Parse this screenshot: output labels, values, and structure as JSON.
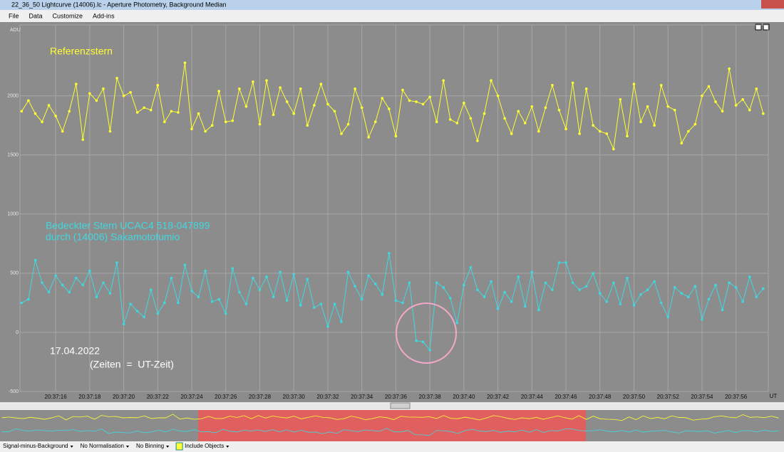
{
  "window": {
    "title": "22_36_50 Lightcurve (14006).lc - Aperture Photometry, Background Median"
  },
  "menu": [
    "File",
    "Data",
    "Customize",
    "Add-ins"
  ],
  "chart_data": {
    "type": "line",
    "ylabel": "ADU",
    "xlabel": "UT",
    "x": [
      14,
      14.4,
      14.8,
      15.2,
      15.6,
      16,
      16.4,
      16.8,
      17.2,
      17.6,
      18,
      18.4,
      18.8,
      19.2,
      19.6,
      20,
      20.4,
      20.8,
      21.2,
      21.6,
      22,
      22.4,
      22.8,
      23.2,
      23.6,
      24,
      24.4,
      24.8,
      25.2,
      25.6,
      26,
      26.4,
      26.8,
      27.2,
      27.6,
      28,
      28.4,
      28.8,
      29.2,
      29.6,
      30,
      30.4,
      30.8,
      31.2,
      31.6,
      32,
      32.4,
      32.8,
      33.2,
      33.6,
      34,
      34.4,
      34.8,
      35.2,
      35.6,
      36,
      36.4,
      36.8,
      37.2,
      37.6,
      38,
      38.4,
      38.8,
      39.2,
      39.6,
      40,
      40.4,
      40.8,
      41.2,
      41.6,
      42,
      42.4,
      42.8,
      43.2,
      43.6,
      44,
      44.4,
      44.8,
      45.2,
      45.6,
      46,
      46.4,
      46.8,
      47.2,
      47.6,
      48,
      48.4,
      48.8,
      49.2,
      49.6,
      50,
      50.4,
      50.8,
      51.2,
      51.6,
      52,
      52.4,
      52.8,
      53.2,
      53.6,
      54,
      54.4,
      54.8,
      55.2,
      55.6,
      56,
      56.4,
      56.8,
      57.2,
      57.6
    ],
    "series": [
      {
        "name": "Referenzstern",
        "color": "#ffff33",
        "values": [
          1870,
          1960,
          1850,
          1780,
          1920,
          1830,
          1700,
          1870,
          2100,
          1630,
          2020,
          1960,
          2060,
          1700,
          2150,
          2000,
          2030,
          1860,
          1900,
          1880,
          2090,
          1780,
          1870,
          1860,
          2280,
          1720,
          1850,
          1700,
          1750,
          2040,
          1780,
          1790,
          2060,
          1910,
          2120,
          1760,
          2130,
          1840,
          2070,
          1950,
          1850,
          2060,
          1750,
          1920,
          2100,
          1930,
          1870,
          1680,
          1760,
          2060,
          1900,
          1650,
          1780,
          1980,
          1890,
          1660,
          2050,
          1960,
          1950,
          1930,
          1990,
          1780,
          2130,
          1800,
          1770,
          1940,
          1810,
          1620,
          1850,
          2130,
          2000,
          1810,
          1680,
          1870,
          1770,
          1910,
          1700,
          1900,
          2090,
          1880,
          1720,
          2110,
          1680,
          2060,
          1750,
          1700,
          1680,
          1550,
          1970,
          1660,
          2100,
          1780,
          1910,
          1750,
          2090,
          1910,
          1880,
          1600,
          1700,
          1760,
          2000,
          2080,
          1950,
          1870,
          2230,
          1920,
          1970,
          1880,
          2060,
          1850
        ]
      },
      {
        "name": "Bedeckter Stern  UCAC4 518-047899",
        "color": "#40d8e0",
        "values": [
          250,
          280,
          610,
          420,
          340,
          480,
          400,
          340,
          460,
          400,
          520,
          300,
          420,
          330,
          590,
          70,
          240,
          180,
          130,
          360,
          160,
          250,
          460,
          250,
          570,
          350,
          300,
          520,
          260,
          280,
          160,
          540,
          340,
          240,
          460,
          360,
          470,
          300,
          510,
          270,
          490,
          230,
          450,
          210,
          240,
          50,
          240,
          90,
          510,
          390,
          280,
          480,
          410,
          320,
          670,
          270,
          250,
          420,
          -70,
          -80,
          -150,
          420,
          380,
          290,
          80,
          400,
          550,
          360,
          300,
          430,
          200,
          340,
          260,
          470,
          220,
          510,
          190,
          420,
          360,
          590,
          590,
          420,
          360,
          390,
          500,
          330,
          260,
          420,
          240,
          460,
          230,
          320,
          360,
          430,
          250,
          130,
          380,
          330,
          300,
          390,
          110,
          280,
          400,
          190,
          420,
          380,
          260,
          470,
          300,
          370
        ]
      }
    ],
    "annotations": [
      "durch (14006) Sakamotofumio",
      "17.04.2022",
      "(Zeiten  =  UT-Zeit)"
    ],
    "xlim": [
      13.9,
      57.9
    ],
    "xticks": [
      {
        "value": 16,
        "label": "20:37:16"
      },
      {
        "value": 18,
        "label": "20:37:18"
      },
      {
        "value": 20,
        "label": "20:37:20"
      },
      {
        "value": 22,
        "label": "20:37:22"
      },
      {
        "value": 24,
        "label": "20:37:24"
      },
      {
        "value": 26,
        "label": "20:37:26"
      },
      {
        "value": 28,
        "label": "20:37:28"
      },
      {
        "value": 30,
        "label": "20:37:30"
      },
      {
        "value": 32,
        "label": "20:37:32"
      },
      {
        "value": 34,
        "label": "20:37:34"
      },
      {
        "value": 36,
        "label": "20:37:36"
      },
      {
        "value": 38,
        "label": "20:37:38"
      },
      {
        "value": 40,
        "label": "20:37:40"
      },
      {
        "value": 42,
        "label": "20:37:42"
      },
      {
        "value": 44,
        "label": "20:37:44"
      },
      {
        "value": 46,
        "label": "20:37:46"
      },
      {
        "value": 48,
        "label": "20:37:48"
      },
      {
        "value": 50,
        "label": "20:37:50"
      },
      {
        "value": 52,
        "label": "20:37:52"
      },
      {
        "value": 54,
        "label": "20:37:54"
      },
      {
        "value": 56,
        "label": "20:37:56"
      }
    ],
    "ylim": [
      -500,
      2600
    ],
    "yticks": [
      -500,
      0,
      500,
      1000,
      1500,
      2000
    ],
    "grid": true
  },
  "statusbar": [
    "Signal-minus-Background",
    "No Normalisation",
    "No Binning",
    "Include Objects"
  ]
}
